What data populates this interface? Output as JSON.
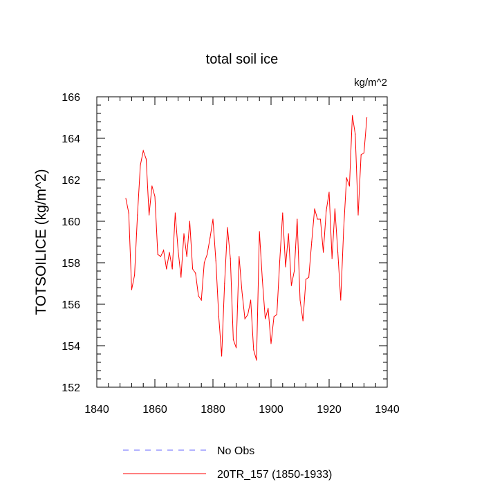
{
  "chart_data": {
    "type": "line",
    "title": "total soil ice",
    "units": "kg/m^2",
    "xlabel": "",
    "ylabel": "TOTSOILICE  (kg/m^2)",
    "xlim": [
      1840,
      1940
    ],
    "ylim": [
      152,
      166
    ],
    "xticks": [
      1840,
      1860,
      1880,
      1900,
      1920,
      1940
    ],
    "yticks": [
      152,
      154,
      156,
      158,
      160,
      162,
      164,
      166
    ],
    "xtick_labels": [
      "1840",
      "1860",
      "1880",
      "1900",
      "1920",
      "1940"
    ],
    "ytick_labels": [
      "152",
      "154",
      "156",
      "158",
      "160",
      "162",
      "164",
      "166"
    ],
    "legend": [
      {
        "label": "No Obs",
        "color": "#6666ff",
        "style": "dashed"
      },
      {
        "label": "20TR_157 (1850-1933)",
        "color": "#ff0000",
        "style": "solid"
      }
    ],
    "series": [
      {
        "name": "20TR_157 (1850-1933)",
        "color": "#ff0000",
        "x": [
          1850,
          1851,
          1852,
          1853,
          1854,
          1855,
          1856,
          1857,
          1858,
          1859,
          1860,
          1861,
          1862,
          1863,
          1864,
          1865,
          1866,
          1867,
          1868,
          1869,
          1870,
          1871,
          1872,
          1873,
          1874,
          1875,
          1876,
          1877,
          1878,
          1879,
          1880,
          1881,
          1882,
          1883,
          1884,
          1885,
          1886,
          1887,
          1888,
          1889,
          1890,
          1891,
          1892,
          1893,
          1894,
          1895,
          1896,
          1897,
          1898,
          1899,
          1900,
          1901,
          1902,
          1903,
          1904,
          1905,
          1906,
          1907,
          1908,
          1909,
          1910,
          1911,
          1912,
          1913,
          1914,
          1915,
          1916,
          1917,
          1918,
          1919,
          1920,
          1921,
          1922,
          1923,
          1924,
          1925,
          1926,
          1927,
          1928,
          1929,
          1930,
          1931,
          1932,
          1933
        ],
        "y": [
          161.1,
          160.4,
          156.7,
          157.4,
          160.3,
          162.7,
          163.4,
          163.0,
          160.3,
          161.7,
          161.2,
          158.4,
          158.3,
          158.6,
          157.7,
          158.5,
          157.7,
          160.4,
          158.6,
          157.3,
          159.4,
          158.3,
          160.0,
          157.7,
          157.5,
          156.4,
          156.2,
          158.0,
          158.4,
          159.2,
          160.1,
          158.1,
          155.4,
          153.5,
          157.0,
          159.7,
          158.2,
          154.3,
          153.9,
          158.3,
          156.6,
          155.3,
          155.5,
          156.2,
          153.8,
          153.3,
          159.5,
          157.2,
          155.3,
          155.8,
          154.1,
          155.4,
          155.5,
          158.1,
          160.4,
          157.8,
          159.4,
          156.9,
          157.6,
          160.1,
          156.2,
          155.2,
          157.2,
          157.3,
          159.0,
          160.6,
          160.1,
          160.1,
          158.5,
          160.5,
          161.4,
          158.2,
          160.6,
          158.5,
          156.2,
          159.6,
          162.1,
          161.7,
          165.1,
          164.2,
          160.3,
          163.2,
          163.3,
          165.0
        ]
      }
    ]
  }
}
